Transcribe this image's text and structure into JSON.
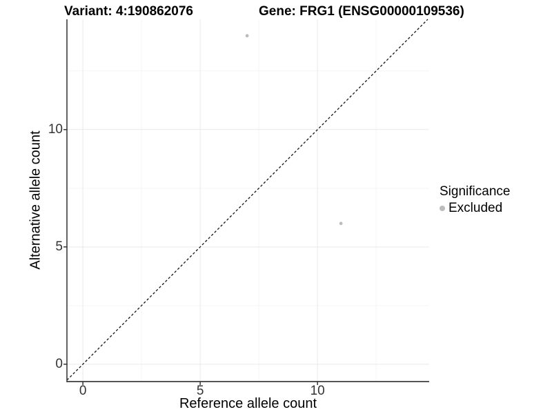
{
  "chart_data": {
    "type": "scatter",
    "title_left": "Variant: 4:190862076",
    "title_right": "Gene: FRG1 (ENSG00000109536)",
    "xlabel": "Reference allele count",
    "ylabel": "Alternative allele count",
    "x_ticks": [
      0,
      5,
      10
    ],
    "y_ticks": [
      0,
      5,
      10
    ],
    "x_minor": [
      2.5,
      7.5,
      12.5
    ],
    "y_minor": [
      2.5,
      7.5,
      12.5
    ],
    "xlim": [
      -0.68,
      14.76
    ],
    "ylim": [
      -0.74,
      14.7
    ],
    "grid": true,
    "legend_position": "right",
    "identity_line": {
      "slope": 1,
      "intercept": 0,
      "style": "dashed",
      "color": "#111111"
    },
    "series": [
      {
        "name": "Excluded",
        "color": "#bcbcbc",
        "points": [
          {
            "x": 7,
            "y": 14
          },
          {
            "x": 11,
            "y": 6
          }
        ]
      }
    ],
    "legend": {
      "title": "Significance",
      "items": [
        {
          "label": "Excluded",
          "color": "#bcbcbc"
        }
      ]
    }
  },
  "colors": {
    "axis_line": "#3c3c3c",
    "tick_mark": "#333333",
    "grid_major": "#e9e9e9",
    "grid_minor": "#f5f5f5",
    "background": "#ffffff"
  }
}
